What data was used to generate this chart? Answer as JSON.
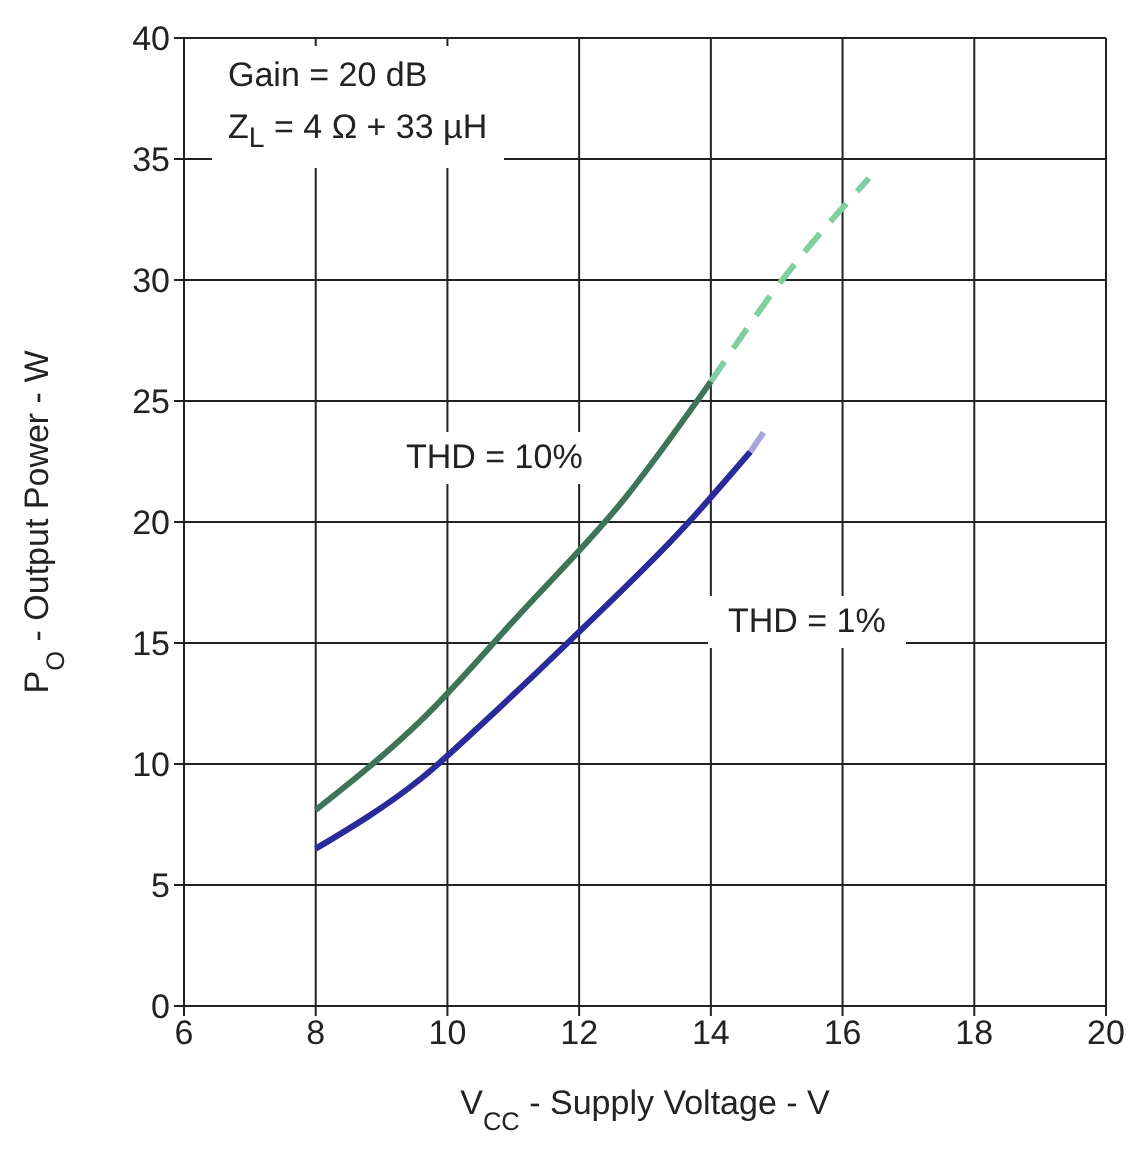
{
  "chart_data": {
    "type": "line",
    "xlabel": "V$_{CC}$ - Supply Voltage - V",
    "ylabel": "P$_{O}$ - Output Power - W",
    "xlim": [
      6,
      20
    ],
    "xticks": [
      6,
      8,
      10,
      12,
      14,
      16,
      18,
      20
    ],
    "ylim": [
      0,
      40
    ],
    "yticks": [
      0,
      5,
      10,
      15,
      20,
      25,
      30,
      35,
      40
    ],
    "grid": true,
    "marker": "none",
    "annotations": [
      "Gain = 20 dB",
      "Z$_{L}$ = 4 Ω + 33 µH",
      "THD = 10%",
      "THD = 1%"
    ],
    "series": [
      {
        "color": "#3e7559",
        "line_style": "solid",
        "x": [
          8,
          9.6,
          11.1,
          12.7,
          14
        ],
        "values": [
          8.1,
          11.8,
          16.2,
          21,
          25.8
        ]
      },
      {
        "color": "#7fcf9f",
        "line_style": "dashed",
        "x": [
          14,
          15,
          16.4
        ],
        "values": [
          25.8,
          29.7,
          34.2
        ]
      },
      {
        "color": "#2a2a9a",
        "line_style": "solid",
        "x": [
          8,
          9.6,
          10.7,
          11.9,
          13.6,
          14.6
        ],
        "values": [
          6.5,
          9.4,
          12.1,
          15.2,
          19.8,
          22.9
        ]
      },
      {
        "color": "#a8a4dc",
        "line_style": "solid",
        "x": [
          14.6,
          14.8
        ],
        "values": [
          22.9,
          23.7
        ]
      }
    ]
  }
}
